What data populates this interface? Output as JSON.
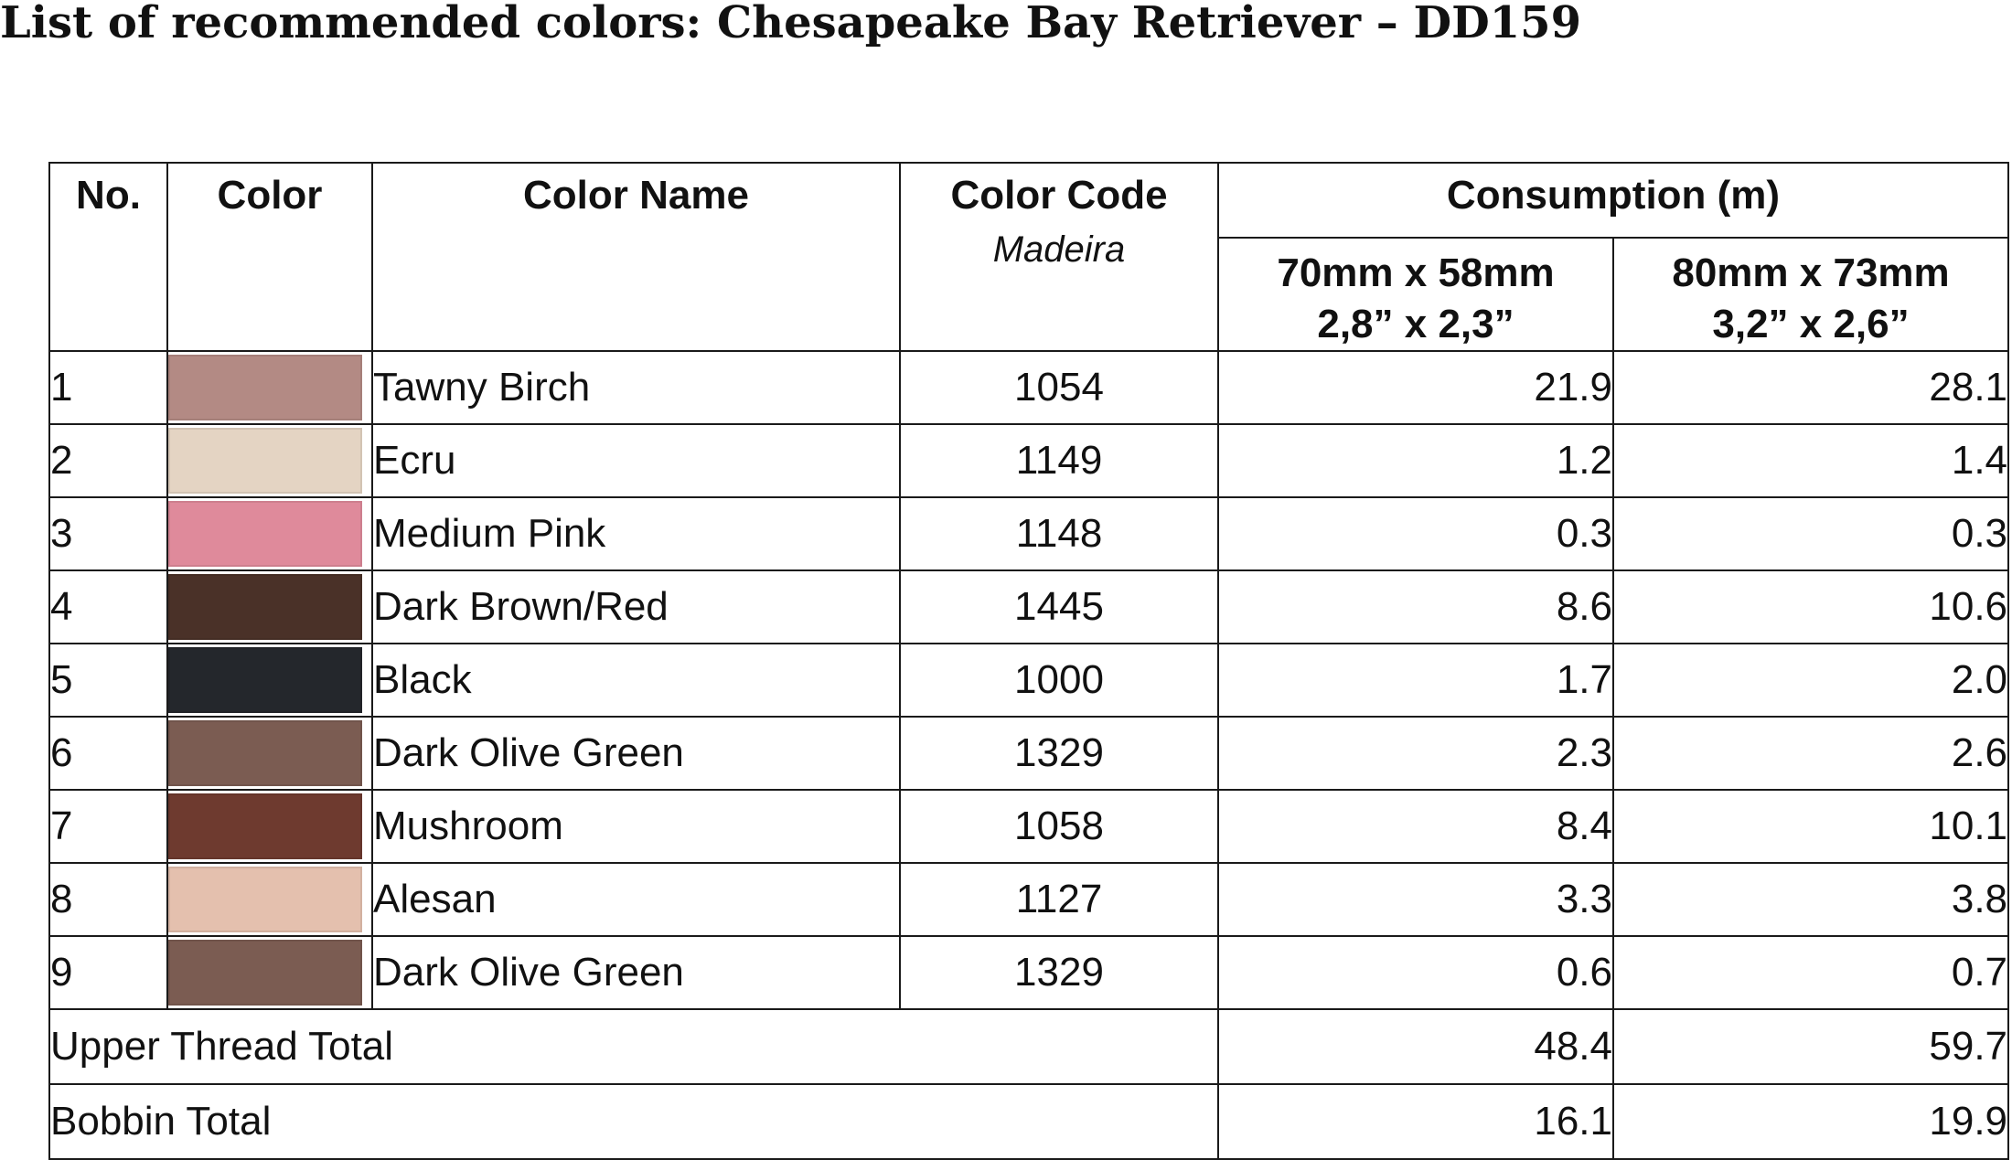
{
  "title": "List of recommended colors: Chesapeake Bay Retriever – DD159",
  "table": {
    "headers": {
      "no": "No.",
      "color": "Color",
      "color_name": "Color Name",
      "color_code": "Color Code",
      "color_code_sub": "Madeira",
      "consumption": "Consumption (m)",
      "size1_mm": "70mm x 58mm",
      "size1_in": "2,8” x 2,3”",
      "size2_mm": "80mm x 73mm",
      "size2_in": "3,2” x 2,6”"
    },
    "rows": [
      {
        "no": "1",
        "swatch": "#b38a84",
        "name": "Tawny Birch",
        "code": "1054",
        "c1": "21.9",
        "c2": "28.1"
      },
      {
        "no": "2",
        "swatch": "#e4d4c3",
        "name": "Ecru",
        "code": "1149",
        "c1": "1.2",
        "c2": "1.4"
      },
      {
        "no": "3",
        "swatch": "#df8a9b",
        "name": "Medium Pink",
        "code": "1148",
        "c1": "0.3",
        "c2": "0.3"
      },
      {
        "no": "4",
        "swatch": "#4a3128",
        "name": "Dark Brown/Red",
        "code": "1445",
        "c1": "8.6",
        "c2": "10.6"
      },
      {
        "no": "5",
        "swatch": "#24272c",
        "name": "Black",
        "code": "1000",
        "c1": "1.7",
        "c2": "2.0"
      },
      {
        "no": "6",
        "swatch": "#7b5c52",
        "name": "Dark Olive Green",
        "code": "1329",
        "c1": "2.3",
        "c2": "2.6"
      },
      {
        "no": "7",
        "swatch": "#6e3a2f",
        "name": "Mushroom",
        "code": "1058",
        "c1": "8.4",
        "c2": "10.1"
      },
      {
        "no": "8",
        "swatch": "#e4c0ae",
        "name": "Alesan",
        "code": "1127",
        "c1": "3.3",
        "c2": "3.8"
      },
      {
        "no": "9",
        "swatch": "#7b5c52",
        "name": "Dark Olive Green",
        "code": "1329",
        "c1": "0.6",
        "c2": "0.7"
      }
    ],
    "totals": [
      {
        "label": "Upper Thread Total",
        "c1": "48.4",
        "c2": "59.7"
      },
      {
        "label": "Bobbin Total",
        "c1": "16.1",
        "c2": "19.9"
      }
    ]
  }
}
